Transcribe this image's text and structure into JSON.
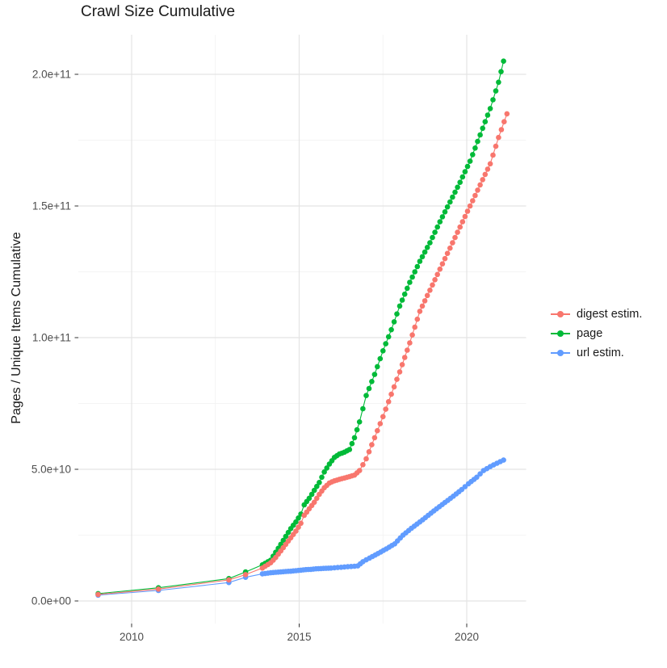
{
  "chart_data": {
    "type": "line",
    "title": "Crawl Size Cumulative",
    "xlabel": "",
    "ylabel": "Pages / Unique Items Cumulative",
    "values_unit": "1e9 (billions of pages / unique items)",
    "grid": true,
    "legend_position": "right",
    "x_axis": {
      "range": [
        2008.4,
        2021.8
      ],
      "ticks": [
        2010,
        2015,
        2020
      ],
      "tick_labels": [
        "2010",
        "2015",
        "2020"
      ],
      "minor_ticks": [
        2012.5,
        2017.5
      ]
    },
    "y_axis": {
      "range_e9": [
        -8,
        216
      ],
      "ticks_e9": [
        0,
        50,
        100,
        150,
        200
      ],
      "tick_labels": [
        "0.0e+00",
        "5.0e+10",
        "1.0e+11",
        "1.5e+11",
        "2.0e+11"
      ],
      "minor_ticks_e9": [
        25,
        75,
        125,
        175
      ]
    },
    "point_rendering": {
      "dense_from_year": 2013.85,
      "dot_interval_years": 0.085
    },
    "series": [
      {
        "name": "digest estim.",
        "color": "#F8766D",
        "anchors": [
          [
            2009.0,
            2.5
          ],
          [
            2010.8,
            4.5
          ],
          [
            2012.9,
            8.0
          ],
          [
            2013.4,
            10.0
          ],
          [
            2013.9,
            12.5
          ],
          [
            2014.15,
            14.5
          ],
          [
            2014.3,
            16.5
          ],
          [
            2014.45,
            19.0
          ],
          [
            2014.6,
            21.5
          ],
          [
            2014.75,
            24.0
          ],
          [
            2014.9,
            26.5
          ],
          [
            2015.05,
            29.5
          ],
          [
            2015.15,
            32.5
          ],
          [
            2015.3,
            35.0
          ],
          [
            2015.45,
            37.5
          ],
          [
            2015.6,
            40.5
          ],
          [
            2015.75,
            43.0
          ],
          [
            2015.9,
            44.8
          ],
          [
            2016.05,
            45.6
          ],
          [
            2016.2,
            46.2
          ],
          [
            2016.35,
            46.7
          ],
          [
            2016.5,
            47.2
          ],
          [
            2016.65,
            47.8
          ],
          [
            2016.8,
            49.5
          ],
          [
            2017.0,
            54.0
          ],
          [
            2017.25,
            62.0
          ],
          [
            2017.5,
            70.0
          ],
          [
            2017.75,
            78.5
          ],
          [
            2018.0,
            87.0
          ],
          [
            2018.3,
            98.0
          ],
          [
            2018.6,
            110.0
          ],
          [
            2018.9,
            118.0
          ],
          [
            2019.2,
            126.0
          ],
          [
            2019.5,
            134.0
          ],
          [
            2019.8,
            142.0
          ],
          [
            2020.1,
            150.0
          ],
          [
            2020.4,
            158.0
          ],
          [
            2020.7,
            166.0
          ],
          [
            2020.95,
            176.0
          ],
          [
            2021.2,
            185.0
          ]
        ]
      },
      {
        "name": "page",
        "color": "#00BA38",
        "anchors": [
          [
            2009.0,
            2.8
          ],
          [
            2010.8,
            5.0
          ],
          [
            2012.9,
            8.5
          ],
          [
            2013.4,
            11.0
          ],
          [
            2013.9,
            13.7
          ],
          [
            2014.15,
            15.5
          ],
          [
            2014.3,
            18.5
          ],
          [
            2014.45,
            21.5
          ],
          [
            2014.6,
            24.5
          ],
          [
            2014.75,
            27.5
          ],
          [
            2014.9,
            30.0
          ],
          [
            2015.05,
            33.0
          ],
          [
            2015.15,
            36.5
          ],
          [
            2015.3,
            39.0
          ],
          [
            2015.45,
            42.0
          ],
          [
            2015.6,
            45.0
          ],
          [
            2015.75,
            49.0
          ],
          [
            2015.9,
            52.0
          ],
          [
            2016.05,
            54.5
          ],
          [
            2016.2,
            55.8
          ],
          [
            2016.35,
            56.5
          ],
          [
            2016.5,
            57.5
          ],
          [
            2016.65,
            62.0
          ],
          [
            2016.8,
            68.0
          ],
          [
            2017.0,
            78.0
          ],
          [
            2017.25,
            86.0
          ],
          [
            2017.5,
            95.0
          ],
          [
            2017.75,
            103.0
          ],
          [
            2018.0,
            112.0
          ],
          [
            2018.3,
            121.0
          ],
          [
            2018.6,
            129.0
          ],
          [
            2018.9,
            136.0
          ],
          [
            2019.2,
            144.0
          ],
          [
            2019.5,
            151.5
          ],
          [
            2019.8,
            159.0
          ],
          [
            2020.1,
            167.0
          ],
          [
            2020.4,
            177.0
          ],
          [
            2020.7,
            187.0
          ],
          [
            2020.95,
            197.0
          ],
          [
            2021.1,
            205.0
          ]
        ]
      },
      {
        "name": "url estim.",
        "color": "#619CFF",
        "anchors": [
          [
            2009.0,
            2.2
          ],
          [
            2010.8,
            4.0
          ],
          [
            2012.9,
            7.0
          ],
          [
            2013.4,
            9.0
          ],
          [
            2013.9,
            10.3
          ],
          [
            2014.15,
            10.7
          ],
          [
            2014.3,
            10.9
          ],
          [
            2014.45,
            11.0
          ],
          [
            2014.6,
            11.2
          ],
          [
            2014.75,
            11.3
          ],
          [
            2014.9,
            11.5
          ],
          [
            2015.05,
            11.7
          ],
          [
            2015.2,
            11.9
          ],
          [
            2015.35,
            12.0
          ],
          [
            2015.5,
            12.2
          ],
          [
            2015.65,
            12.3
          ],
          [
            2015.8,
            12.4
          ],
          [
            2015.95,
            12.5
          ],
          [
            2016.15,
            12.7
          ],
          [
            2016.35,
            12.9
          ],
          [
            2016.55,
            13.1
          ],
          [
            2016.75,
            13.3
          ],
          [
            2016.9,
            14.9
          ],
          [
            2017.1,
            16.3
          ],
          [
            2017.35,
            18.0
          ],
          [
            2017.6,
            19.8
          ],
          [
            2017.85,
            21.7
          ],
          [
            2018.1,
            25.0
          ],
          [
            2018.35,
            27.6
          ],
          [
            2018.6,
            30.0
          ],
          [
            2018.85,
            32.5
          ],
          [
            2019.1,
            35.0
          ],
          [
            2019.35,
            37.4
          ],
          [
            2019.6,
            39.8
          ],
          [
            2019.85,
            42.3
          ],
          [
            2020.05,
            44.5
          ],
          [
            2020.3,
            47.0
          ],
          [
            2020.5,
            49.5
          ],
          [
            2020.7,
            51.0
          ],
          [
            2020.9,
            52.3
          ],
          [
            2021.1,
            53.5
          ]
        ]
      }
    ]
  }
}
